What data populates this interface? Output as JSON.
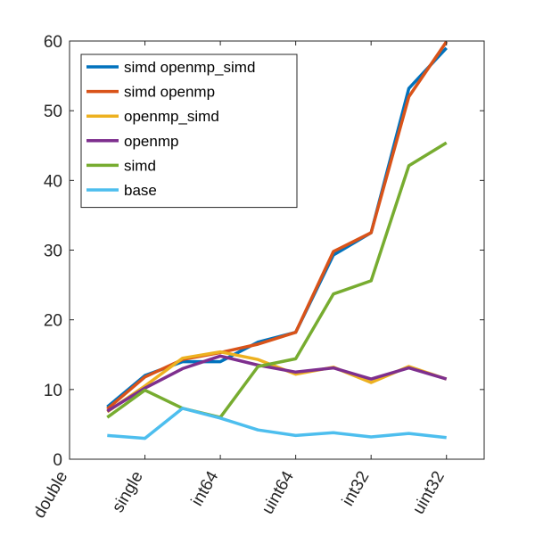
{
  "chart_data": {
    "type": "line",
    "x": [
      1,
      2,
      3,
      4,
      5,
      6,
      7,
      8,
      9,
      10,
      11
    ],
    "xlim": [
      0,
      11
    ],
    "ylim": [
      0,
      60
    ],
    "x_ticks": [
      {
        "x": 0,
        "label": "double"
      },
      {
        "x": 2,
        "label": "single"
      },
      {
        "x": 4,
        "label": "int64"
      },
      {
        "x": 6,
        "label": "uint64"
      },
      {
        "x": 8,
        "label": "int32"
      },
      {
        "x": 10,
        "label": "uint32"
      }
    ],
    "y_ticks": [
      0,
      10,
      20,
      30,
      40,
      50,
      60
    ],
    "grid": false,
    "legend_position": "top-left",
    "series": [
      {
        "name": "simd openmp_simd",
        "color": "#0072BD",
        "values": [
          7.5,
          12.0,
          14.0,
          14.0,
          16.8,
          18.2,
          29.3,
          32.5,
          53.2,
          59.0,
          null
        ]
      },
      {
        "name": "simd openmp",
        "color": "#D95319",
        "values": [
          7.2,
          11.8,
          14.3,
          15.3,
          16.5,
          18.2,
          29.8,
          32.5,
          52.0,
          59.9,
          null
        ]
      },
      {
        "name": "openmp_simd",
        "color": "#EDB120",
        "values": [
          6.8,
          10.5,
          14.5,
          15.4,
          14.3,
          12.2,
          13.2,
          11.0,
          13.3,
          11.5,
          null
        ]
      },
      {
        "name": "openmp",
        "color": "#7E2F8E",
        "values": [
          6.9,
          10.2,
          13.0,
          14.8,
          13.5,
          12.5,
          13.1,
          11.5,
          13.1,
          11.5,
          null
        ]
      },
      {
        "name": "simd",
        "color": "#77AC30",
        "values": [
          6.0,
          9.9,
          7.3,
          6.0,
          13.3,
          14.4,
          23.7,
          25.6,
          42.1,
          45.4,
          null
        ]
      },
      {
        "name": "base",
        "color": "#4DBEEE",
        "values": [
          3.4,
          3.0,
          7.3,
          5.9,
          4.2,
          3.4,
          3.8,
          3.2,
          3.7,
          3.1,
          null
        ]
      }
    ]
  }
}
